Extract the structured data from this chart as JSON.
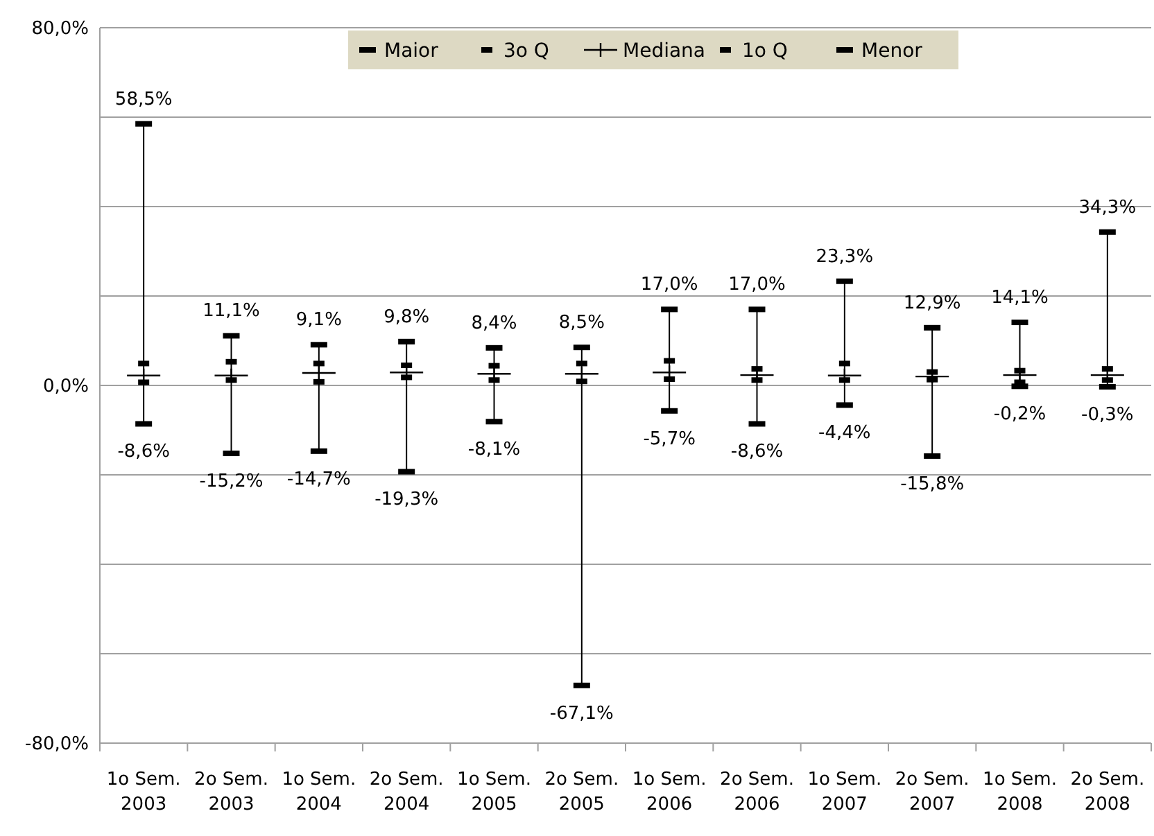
{
  "chart_data": {
    "type": "scatter",
    "categories": [
      "1o Sem.\n2003",
      "2o Sem.\n2003",
      "1o Sem.\n2004",
      "2o Sem.\n2004",
      "1o Sem.\n2005",
      "2o Sem.\n2005",
      "1o Sem.\n2006",
      "2o Sem.\n2006",
      "1o Sem.\n2007",
      "2o Sem.\n2007",
      "1o Sem.\n2008",
      "2o Sem.\n2008"
    ],
    "series": [
      {
        "name": "Maior",
        "color": "#000000",
        "values": [
          58.5,
          11.1,
          9.1,
          9.8,
          8.4,
          8.5,
          17.0,
          17.0,
          23.3,
          12.9,
          14.1,
          34.3
        ],
        "value_labels": [
          "58,5%",
          "11,1%",
          "9,1%",
          "9,8%",
          "8,4%",
          "8,5%",
          "17,0%",
          "17,0%",
          "23,3%",
          "12,9%",
          "14,1%",
          "34,3%"
        ]
      },
      {
        "name": "3o Q",
        "color": "#000000",
        "values": [
          4.9,
          5.3,
          4.9,
          4.5,
          4.4,
          4.9,
          5.5,
          3.7,
          4.9,
          3.0,
          3.3,
          3.7
        ]
      },
      {
        "name": "Mediana",
        "color": "#000000",
        "values": [
          2.2,
          2.2,
          2.8,
          2.9,
          2.6,
          2.6,
          2.9,
          2.3,
          2.2,
          2.0,
          2.3,
          2.3
        ]
      },
      {
        "name": "1o Q",
        "color": "#000000",
        "values": [
          0.7,
          1.2,
          0.8,
          1.8,
          1.2,
          0.9,
          1.4,
          1.2,
          1.2,
          1.3,
          0.7,
          1.2
        ]
      },
      {
        "name": "Menor",
        "color": "#000000",
        "values": [
          -8.6,
          -15.2,
          -14.7,
          -19.3,
          -8.1,
          -67.1,
          -5.7,
          -8.6,
          -4.4,
          -15.8,
          -0.2,
          -0.3
        ],
        "value_labels": [
          "-8,6%",
          "-15,2%",
          "-14,7%",
          "-19,3%",
          "-8,1%",
          "-67,1%",
          "-5,7%",
          "-8,6%",
          "-4,4%",
          "-15,8%",
          "-0,2%",
          "-0,3%"
        ]
      }
    ],
    "ylim": [
      -80,
      80
    ],
    "yticks": [
      {
        "value": -80,
        "label": "-80,0%"
      },
      {
        "value": -60,
        "label": null
      },
      {
        "value": -40,
        "label": null
      },
      {
        "value": -20,
        "label": null
      },
      {
        "value": 0,
        "label": "0,0%"
      },
      {
        "value": 20,
        "label": null
      },
      {
        "value": 40,
        "label": null
      },
      {
        "value": 60,
        "label": null
      },
      {
        "value": 80,
        "label": "80,0%"
      }
    ],
    "grid": "y",
    "legend": "top"
  }
}
